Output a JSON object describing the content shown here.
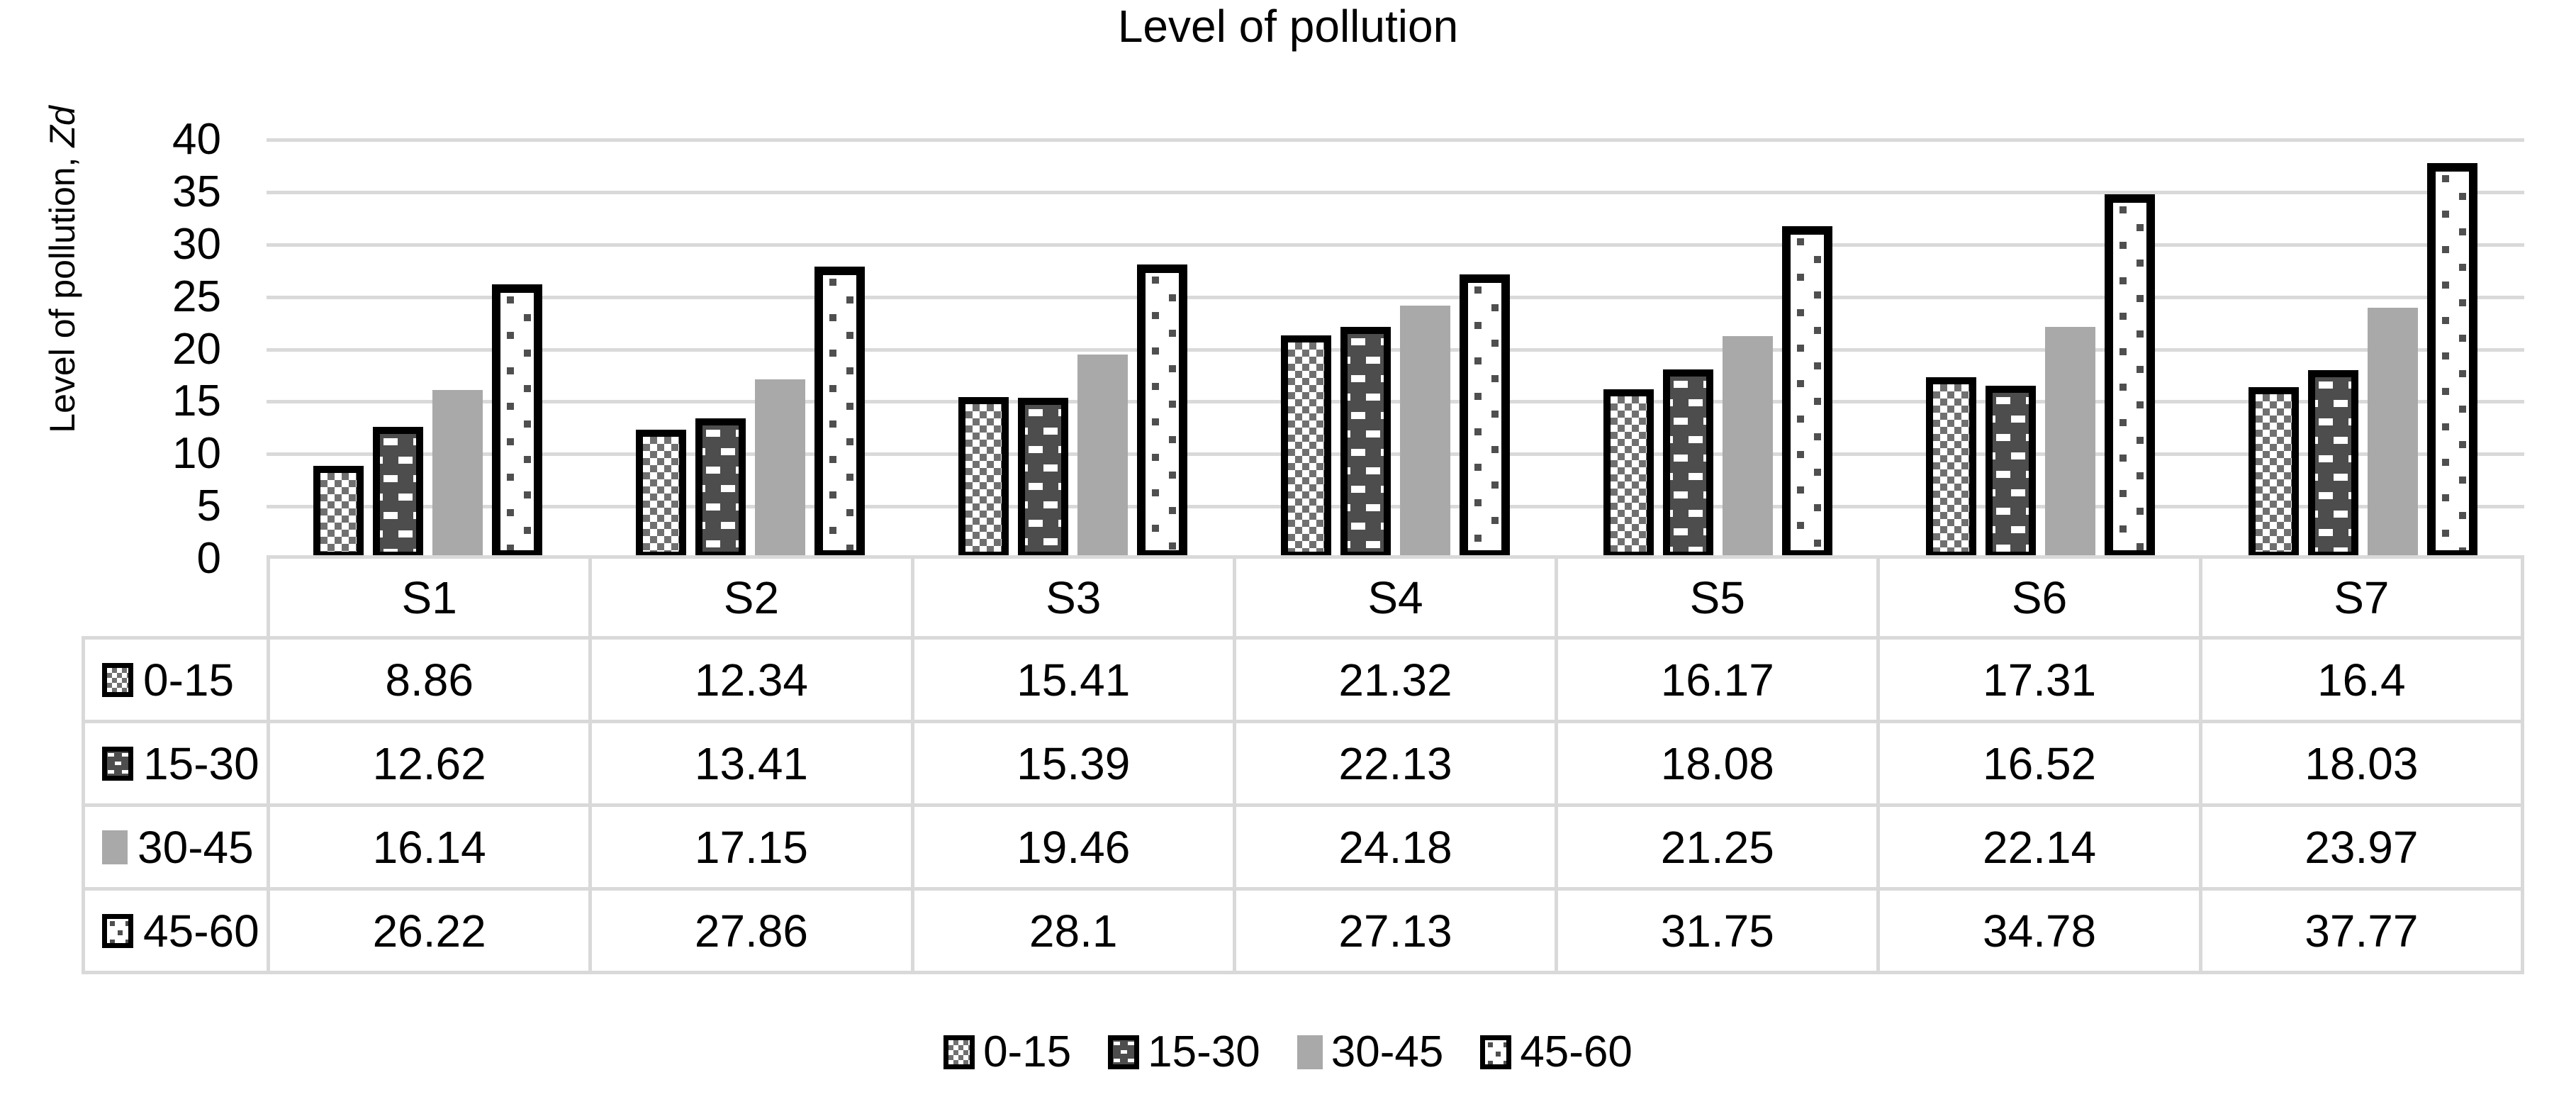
{
  "title": "Level of pollution",
  "chart_data": {
    "type": "bar",
    "title": "Level of pollution",
    "categories": [
      "S1",
      "S2",
      "S3",
      "S4",
      "S5",
      "S6",
      "S7"
    ],
    "series": [
      {
        "name": "0-15",
        "values": [
          8.86,
          12.34,
          15.41,
          21.32,
          16.17,
          17.31,
          16.4
        ]
      },
      {
        "name": "15-30",
        "values": [
          12.62,
          13.41,
          15.39,
          22.13,
          18.08,
          16.52,
          18.03
        ]
      },
      {
        "name": "30-45",
        "values": [
          16.14,
          17.15,
          19.46,
          24.18,
          21.25,
          22.14,
          23.97
        ]
      },
      {
        "name": "45-60",
        "values": [
          26.22,
          27.86,
          28.1,
          27.13,
          31.75,
          34.78,
          37.77
        ]
      }
    ],
    "xlabel": "",
    "ylabel": "Level of pollution, Zd",
    "ylim": [
      0,
      40
    ],
    "ytick_step": 5,
    "grid": "horizontal",
    "legend_position": "bottom",
    "data_table_shown": true
  },
  "y_axis": {
    "label_prefix": "Level of pollution, ",
    "label_italic": "Zd",
    "ticks": [
      "40",
      "35",
      "30",
      "25",
      "20",
      "15",
      "10",
      "5",
      "0"
    ]
  },
  "table": {
    "column_headers": [
      "S1",
      "S2",
      "S3",
      "S4",
      "S5",
      "S6",
      "S7"
    ],
    "rows": [
      {
        "label": "0-15",
        "values": [
          "8.86",
          "12.34",
          "15.41",
          "21.32",
          "16.17",
          "17.31",
          "16.4"
        ]
      },
      {
        "label": "15-30",
        "values": [
          "12.62",
          "13.41",
          "15.39",
          "22.13",
          "18.08",
          "16.52",
          "18.03"
        ]
      },
      {
        "label": "30-45",
        "values": [
          "16.14",
          "17.15",
          "19.46",
          "24.18",
          "21.25",
          "22.14",
          "23.97"
        ]
      },
      {
        "label": "45-60",
        "values": [
          "26.22",
          "27.86",
          "28.1",
          "27.13",
          "31.75",
          "34.78",
          "37.77"
        ]
      }
    ]
  },
  "legend": {
    "items": [
      "0-15",
      "15-30",
      "30-45",
      "45-60"
    ]
  },
  "colors": {
    "background": "#ffffff",
    "text": "#000000",
    "gridline": "#d9d9d9",
    "bar_border": "#000000",
    "series_checker_gray": "#707070",
    "series_brick_dark": "#4d4d4d",
    "series_solid_gray": "#a9a9a9",
    "series_dot_gray": "#4f4f4f"
  },
  "icon_legend": {
    "checker-pattern-swatch": "0-15",
    "brick-pattern-swatch": "15-30",
    "solid-gray-swatch": "30-45",
    "dot-pattern-swatch": "45-60"
  }
}
